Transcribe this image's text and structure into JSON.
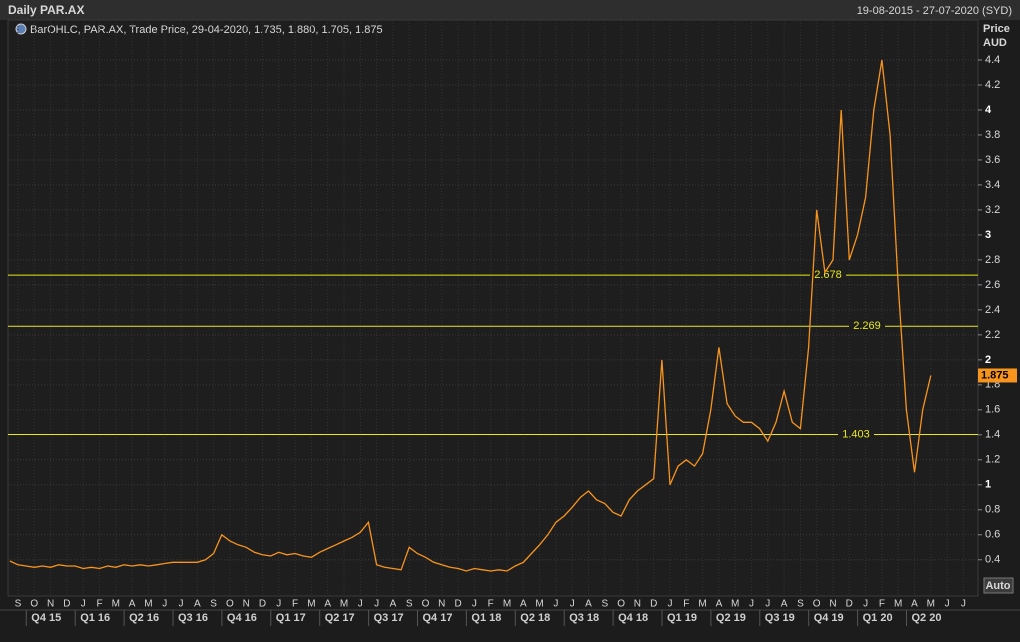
{
  "header": {
    "title": "Daily PAR.AX",
    "range": "19-08-2015 - 27-07-2020 (SYD)"
  },
  "chart_data": {
    "type": "line",
    "legend": "BarOHLC, PAR.AX, Trade Price, 29-04-2020, 1.735, 1.880, 1.705, 1.875",
    "y_label": "Price",
    "y_unit": "AUD",
    "categories": [
      null,
      "S",
      null,
      "O",
      null,
      "N",
      null,
      "D",
      null,
      "J",
      null,
      "F",
      null,
      "M",
      null,
      "A",
      null,
      "M",
      null,
      "J",
      null,
      "J",
      null,
      "A",
      null,
      "S",
      null,
      "O",
      null,
      "N",
      null,
      "D",
      null,
      "J",
      null,
      "F",
      null,
      "M",
      null,
      "A",
      null,
      "M",
      null,
      "J",
      null,
      "J",
      null,
      "A",
      null,
      "S",
      null,
      "O",
      null,
      "N",
      null,
      "D",
      null,
      "J",
      null,
      "F",
      null,
      "M",
      null,
      "A",
      null,
      "M",
      null,
      "J",
      null,
      "J",
      null,
      "A",
      null,
      "S",
      null,
      "O",
      null,
      "N",
      null,
      "D",
      null,
      "J",
      null,
      "F",
      null,
      "M",
      null,
      "A",
      null,
      "M",
      null,
      "J",
      null,
      "J",
      null,
      "A",
      null,
      "S",
      null,
      "O",
      null,
      "N",
      null,
      "D",
      null,
      "J",
      null,
      "F",
      null,
      "M",
      null,
      "A",
      null,
      "M",
      null,
      "J",
      null,
      "J",
      null
    ],
    "quarters": [
      "Q4 15",
      "Q1 16",
      "Q2 16",
      "Q3 16",
      "Q4 16",
      "Q1 17",
      "Q2 17",
      "Q3 17",
      "Q4 17",
      "Q1 18",
      "Q2 18",
      "Q3 18",
      "Q4 18",
      "Q1 19",
      "Q2 19",
      "Q3 19",
      "Q4 19",
      "Q1 20",
      "Q2 20"
    ],
    "series": [
      {
        "color": "#f7941d",
        "values": [
          0.39,
          0.36,
          0.35,
          0.34,
          0.35,
          0.34,
          0.36,
          0.35,
          0.35,
          0.33,
          0.34,
          0.33,
          0.35,
          0.34,
          0.36,
          0.35,
          0.36,
          0.35,
          0.36,
          0.37,
          0.38,
          0.38,
          0.38,
          0.38,
          0.4,
          0.45,
          0.6,
          0.55,
          0.52,
          0.5,
          0.46,
          0.44,
          0.43,
          0.46,
          0.44,
          0.45,
          0.43,
          0.42,
          0.46,
          0.49,
          0.52,
          0.55,
          0.58,
          0.62,
          0.7,
          0.36,
          0.34,
          0.33,
          0.32,
          0.5,
          0.45,
          0.42,
          0.38,
          0.36,
          0.34,
          0.33,
          0.31,
          0.33,
          0.32,
          0.31,
          0.32,
          0.31,
          0.35,
          0.38,
          0.45,
          0.52,
          0.6,
          0.7,
          0.75,
          0.82,
          0.9,
          0.95,
          0.88,
          0.85,
          0.78,
          0.75,
          0.88,
          0.95,
          1.0,
          1.05,
          2.0,
          1.0,
          1.15,
          1.2,
          1.15,
          1.25,
          1.6,
          2.1,
          1.65,
          1.55,
          1.5,
          1.5,
          1.45,
          1.35,
          1.5,
          1.75,
          1.5,
          1.45,
          2.1,
          3.2,
          2.7,
          2.8,
          4.0,
          2.8,
          3.0,
          3.3,
          4.0,
          4.4,
          3.8,
          2.6,
          1.6,
          1.1,
          1.6,
          1.875,
          null,
          null,
          null,
          null,
          null
        ]
      }
    ],
    "ylim": [
      0.11,
      4.72
    ],
    "yticks": [
      0.4,
      0.6,
      0.8,
      1,
      1.2,
      1.4,
      1.6,
      1.8,
      2,
      2.2,
      2.4,
      2.6,
      2.8,
      3,
      3.2,
      3.4,
      3.6,
      3.8,
      4,
      4.2,
      4.4
    ],
    "horizontal_lines": [
      2.678,
      2.269,
      1.403
    ],
    "hline_color": "#e8e81c",
    "grid": true,
    "button": "Auto"
  }
}
